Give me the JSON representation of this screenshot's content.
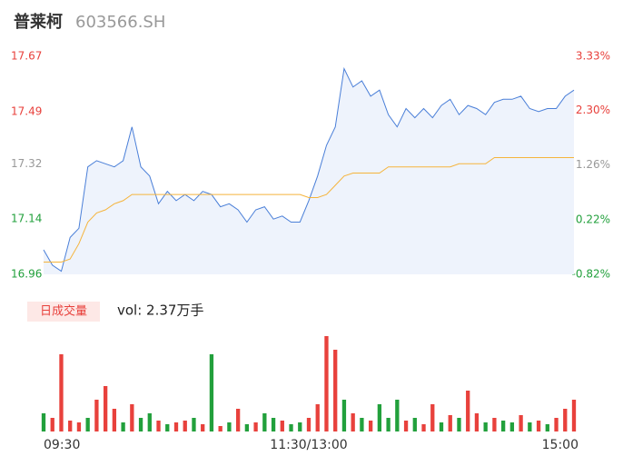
{
  "chart_data": {
    "type": "line",
    "title": "普莱柯",
    "subtitle": "603566.SH",
    "volume_label": "日成交量",
    "volume_text": "vol: 2.37万手",
    "xlim": [
      0,
      240
    ],
    "x": [
      0,
      4,
      8,
      12,
      16,
      20,
      24,
      28,
      32,
      36,
      40,
      44,
      48,
      52,
      56,
      60,
      64,
      68,
      72,
      76,
      80,
      84,
      88,
      92,
      96,
      100,
      104,
      108,
      112,
      116,
      120,
      124,
      128,
      132,
      136,
      140,
      144,
      148,
      152,
      156,
      160,
      164,
      168,
      172,
      176,
      180,
      184,
      188,
      192,
      196,
      200,
      204,
      208,
      212,
      216,
      220,
      224,
      228,
      232,
      236,
      240
    ],
    "xticks": [
      {
        "value": 0,
        "label": "09:30"
      },
      {
        "value": 120,
        "label": "11:30/13:00"
      },
      {
        "value": 240,
        "label": "15:00"
      }
    ],
    "ylim": [
      16.96,
      17.67
    ],
    "yticks": [
      16.96,
      17.14,
      17.32,
      17.49,
      17.67
    ],
    "y2lim": [
      -0.82,
      3.33
    ],
    "y2ticks": [
      {
        "value": -0.82,
        "label": "-0.82%"
      },
      {
        "value": 0.22,
        "label": "0.22%"
      },
      {
        "value": 1.26,
        "label": "1.26%"
      },
      {
        "value": 2.3,
        "label": "2.30%"
      },
      {
        "value": 3.33,
        "label": "3.33%"
      }
    ],
    "tick_colors": [
      "#22a03c",
      "#22a03c",
      "#999999",
      "#e8413c",
      "#e8413c"
    ],
    "series": [
      {
        "name": "price",
        "color": "#4a7fd8",
        "values": [
          17.04,
          16.99,
          16.97,
          17.08,
          17.11,
          17.31,
          17.33,
          17.32,
          17.31,
          17.33,
          17.44,
          17.31,
          17.28,
          17.19,
          17.23,
          17.2,
          17.22,
          17.2,
          17.23,
          17.22,
          17.18,
          17.19,
          17.17,
          17.13,
          17.17,
          17.18,
          17.14,
          17.15,
          17.13,
          17.13,
          17.2,
          17.28,
          17.38,
          17.44,
          17.63,
          17.57,
          17.59,
          17.54,
          17.56,
          17.48,
          17.44,
          17.5,
          17.47,
          17.5,
          17.47,
          17.51,
          17.53,
          17.48,
          17.51,
          17.5,
          17.48,
          17.52,
          17.53,
          17.53,
          17.54,
          17.5,
          17.49,
          17.5,
          17.5,
          17.54,
          17.56
        ]
      },
      {
        "name": "average",
        "color": "#f5b43c",
        "values": [
          17.0,
          17.0,
          17.0,
          17.01,
          17.06,
          17.13,
          17.16,
          17.17,
          17.19,
          17.2,
          17.22,
          17.22,
          17.22,
          17.22,
          17.22,
          17.22,
          17.22,
          17.22,
          17.22,
          17.22,
          17.22,
          17.22,
          17.22,
          17.22,
          17.22,
          17.22,
          17.22,
          17.22,
          17.22,
          17.22,
          17.21,
          17.21,
          17.22,
          17.25,
          17.28,
          17.29,
          17.29,
          17.29,
          17.29,
          17.31,
          17.31,
          17.31,
          17.31,
          17.31,
          17.31,
          17.31,
          17.31,
          17.32,
          17.32,
          17.32,
          17.32,
          17.34,
          17.34,
          17.34,
          17.34,
          17.34,
          17.34,
          17.34,
          17.34,
          17.34,
          17.34
        ]
      }
    ],
    "volume": {
      "ylim": [
        0,
        105
      ],
      "values": [
        20,
        15,
        85,
        12,
        10,
        15,
        35,
        50,
        25,
        10,
        30,
        15,
        20,
        12,
        8,
        10,
        12,
        15,
        8,
        85,
        6,
        10,
        25,
        8,
        10,
        20,
        15,
        12,
        8,
        10,
        15,
        30,
        105,
        90,
        35,
        20,
        15,
        12,
        30,
        15,
        35,
        12,
        15,
        8,
        30,
        10,
        18,
        15,
        45,
        20,
        10,
        15,
        12,
        10,
        18,
        10,
        12,
        8,
        15,
        25,
        35
      ],
      "colors": [
        "#22a03c",
        "#e8413c",
        "#e8413c",
        "#e8413c",
        "#e8413c",
        "#22a03c",
        "#e8413c",
        "#e8413c",
        "#e8413c",
        "#22a03c",
        "#e8413c",
        "#22a03c",
        "#22a03c",
        "#e8413c",
        "#22a03c",
        "#e8413c",
        "#e8413c",
        "#22a03c",
        "#e8413c",
        "#22a03c",
        "#e8413c",
        "#22a03c",
        "#e8413c",
        "#22a03c",
        "#e8413c",
        "#22a03c",
        "#22a03c",
        "#e8413c",
        "#22a03c",
        "#22a03c",
        "#e8413c",
        "#e8413c",
        "#e8413c",
        "#e8413c",
        "#22a03c",
        "#e8413c",
        "#22a03c",
        "#e8413c",
        "#22a03c",
        "#22a03c",
        "#22a03c",
        "#e8413c",
        "#22a03c",
        "#e8413c",
        "#e8413c",
        "#22a03c",
        "#e8413c",
        "#22a03c",
        "#e8413c",
        "#e8413c",
        "#22a03c",
        "#e8413c",
        "#22a03c",
        "#22a03c",
        "#e8413c",
        "#22a03c",
        "#e8413c",
        "#22a03c",
        "#e8413c",
        "#e8413c",
        "#e8413c"
      ]
    }
  }
}
